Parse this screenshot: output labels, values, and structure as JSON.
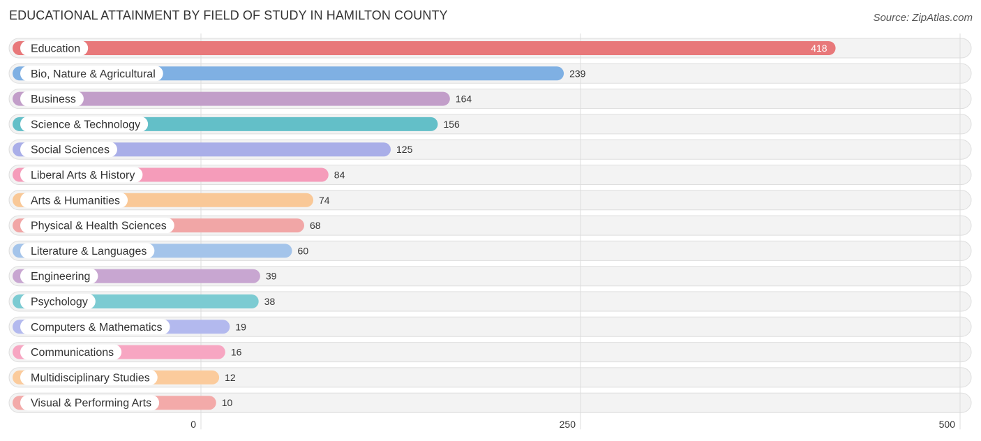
{
  "chart_data": {
    "type": "bar",
    "orientation": "horizontal",
    "title": "EDUCATIONAL ATTAINMENT BY FIELD OF STUDY IN HAMILTON COUNTY",
    "source": "Source: ZipAtlas.com",
    "categories": [
      "Education",
      "Bio, Nature & Agricultural",
      "Business",
      "Science & Technology",
      "Social Sciences",
      "Liberal Arts & History",
      "Arts & Humanities",
      "Physical & Health Sciences",
      "Literature & Languages",
      "Engineering",
      "Psychology",
      "Computers & Mathematics",
      "Communications",
      "Multidisciplinary Studies",
      "Visual & Performing Arts"
    ],
    "values": [
      418,
      239,
      164,
      156,
      125,
      84,
      74,
      68,
      60,
      39,
      38,
      19,
      16,
      12,
      10
    ],
    "value_labels": [
      "418",
      "239",
      "164",
      "156",
      "125",
      "84",
      "74",
      "68",
      "60",
      "39",
      "38",
      "19",
      "16",
      "12",
      "10"
    ],
    "colors": [
      "#e8787a",
      "#7fb0e3",
      "#c29ec9",
      "#63bfc8",
      "#a9aee8",
      "#f59cba",
      "#f9c897",
      "#f1a6a6",
      "#a4c4ea",
      "#c8a6d1",
      "#7ccbd2",
      "#b3b9ee",
      "#f7a6c2",
      "#fbcb9c",
      "#f3aaa9"
    ],
    "xlim": [
      0,
      500
    ],
    "xticks": [
      0,
      250,
      500
    ],
    "xtick_labels": [
      "0",
      "250",
      "500"
    ],
    "xlabel": "",
    "ylabel": "",
    "grid": true
  }
}
